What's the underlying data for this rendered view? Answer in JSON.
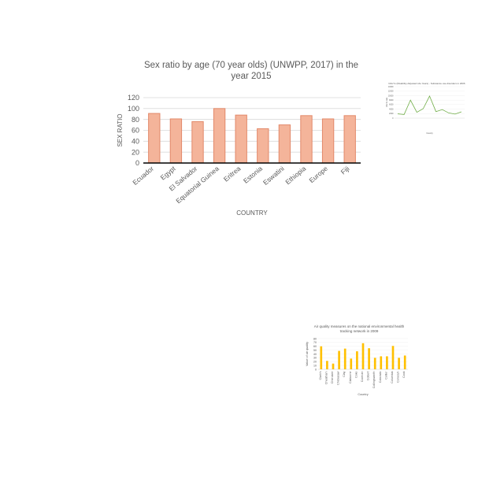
{
  "chart_data": [
    {
      "type": "bar",
      "title": "Sex ratio by age (70 year olds) (UNWPP, 2017) in the\nyear 2015",
      "xlabel": "COUNTRY",
      "ylabel": "SEX RATIO",
      "categories": [
        "Ecuador",
        "Egypt",
        "El Salvador",
        "Equatorial Guinea",
        "Eritrea",
        "Estonia",
        "Eswatini",
        "Ethiopia",
        "Europe",
        "Fiji"
      ],
      "values": [
        91,
        81,
        76,
        100,
        88,
        63,
        70,
        87,
        81,
        87
      ],
      "ylim": [
        0,
        120
      ],
      "yticks": [
        0,
        20,
        40,
        60,
        80,
        100,
        120
      ],
      "grid": true,
      "colors": {
        "fill": "#f4b49a",
        "stroke": "#e2896a",
        "grid": "#d9d9d9",
        "axis": "#000000"
      }
    },
    {
      "type": "line",
      "title": "DALYs (Disability-Adjusted Life Years) - Substance use disorders in 2006",
      "xlabel": "Country",
      "ylabel": "DALYs rate",
      "categories": [
        "",
        "",
        "",
        "",
        "",
        "",
        "",
        "",
        "",
        "",
        ""
      ],
      "values": [
        1900,
        1600,
        8000,
        2600,
        4200,
        9800,
        2900,
        3800,
        2300,
        1800,
        2800
      ],
      "ylim": [
        0,
        14000
      ],
      "yticks": [
        0,
        2000,
        4000,
        6000,
        8000,
        10000,
        12000,
        14000
      ],
      "grid": true,
      "colors": {
        "line": "#70ad47",
        "grid": "#e0e0e0"
      }
    },
    {
      "type": "bar",
      "title": "Air quality measures on the national environmental health\ntracking network in 2009",
      "xlabel": "Country",
      "ylabel": "Value of air quality",
      "categories": [
        "Clark's",
        "Cheatham",
        "Cherokee",
        "Chickasaw",
        "Clay",
        "Claiborne",
        "Coke",
        "Cochran",
        "Colbert",
        "Collingsworth",
        "Colorado",
        "Collier",
        "Columbia",
        "Conecuh",
        "Cook"
      ],
      "values": [
        60,
        22,
        15,
        48,
        54,
        28,
        47,
        68,
        55,
        30,
        34,
        34,
        61,
        30,
        36
      ],
      "ylim": [
        0,
        80
      ],
      "yticks": [
        0,
        10,
        20,
        30,
        40,
        50,
        60,
        70,
        80
      ],
      "grid": true,
      "colors": {
        "fill": "#ffc000",
        "grid": "#e6e6e6"
      }
    }
  ]
}
